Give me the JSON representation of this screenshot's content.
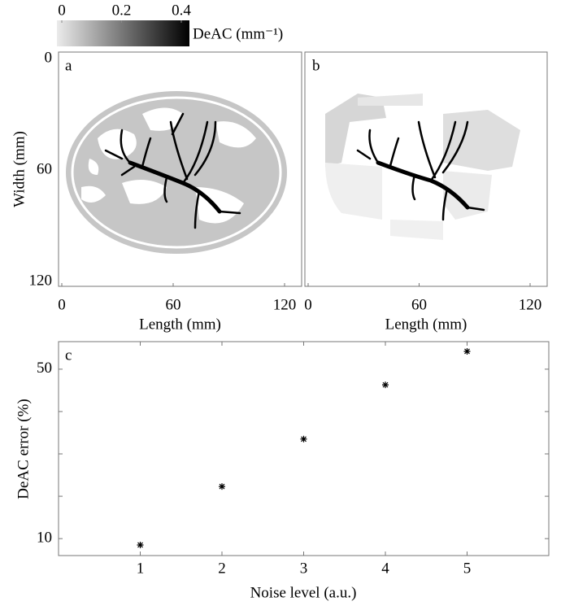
{
  "chart_data": [
    {
      "type": "colorbar",
      "label": "DeAC (mm⁻¹)",
      "lim": [
        0,
        0.4
      ],
      "ticks": [
        0,
        0.2,
        0.4
      ],
      "colors": [
        "#ebebeb",
        "#000000"
      ]
    },
    {
      "type": "image",
      "panel": "a",
      "xlabel": "Length (mm)",
      "ylabel": "Width (mm)",
      "xlim": [
        0,
        120
      ],
      "ylim": [
        0,
        120
      ],
      "xticks": [
        0,
        60,
        120
      ],
      "yticks": [
        0,
        60,
        120
      ]
    },
    {
      "type": "image",
      "panel": "b",
      "xlabel": "Length (mm)",
      "xlim": [
        0,
        120
      ],
      "xticks": [
        0,
        60,
        120
      ]
    },
    {
      "type": "scatter",
      "panel": "c",
      "xlabel": "Noise level (a.u.)",
      "ylabel": "DeAC error (%)",
      "x": [
        1,
        2,
        3,
        4,
        5
      ],
      "values": [
        8.5,
        22.3,
        33.5,
        46.3,
        54.2
      ],
      "xlim": [
        0,
        6
      ],
      "ylim": [
        6,
        56.5
      ],
      "xticks": [
        1,
        2,
        3,
        4,
        5
      ],
      "yticks": [
        10,
        50
      ],
      "yminorticks": [
        20,
        30,
        40
      ],
      "color": "#000000"
    }
  ]
}
